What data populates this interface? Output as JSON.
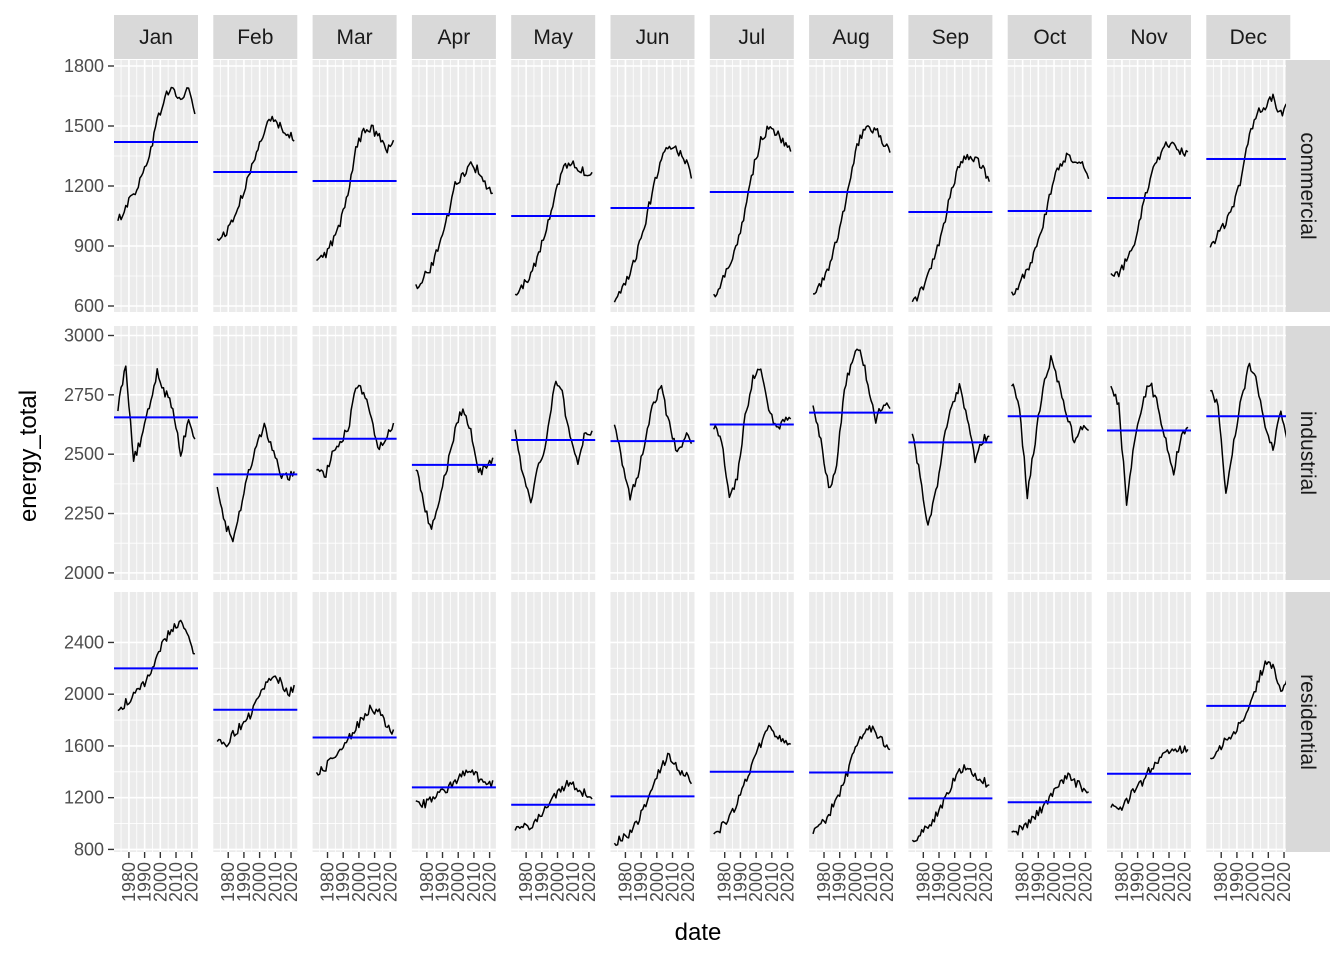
{
  "chart_data": {
    "type": "line",
    "subtype": "seasonal subseries facet grid",
    "title": "",
    "xlabel": "date",
    "ylabel": "energy_total",
    "months": [
      "Jan",
      "Feb",
      "Mar",
      "Apr",
      "May",
      "Jun",
      "Jul",
      "Aug",
      "Sep",
      "Oct",
      "Nov",
      "Dec"
    ],
    "rows": [
      {
        "label": "commercial",
        "ylim": [
          570,
          1830
        ],
        "yticks": [
          600,
          900,
          1200,
          1500,
          1800
        ]
      },
      {
        "label": "industrial",
        "ylim": [
          1970,
          3040
        ],
        "yticks": [
          2000,
          2250,
          2500,
          2750,
          3000
        ]
      },
      {
        "label": "residential",
        "ylim": [
          780,
          2790
        ],
        "yticks": [
          800,
          1200,
          1600,
          2000,
          2400
        ]
      }
    ],
    "xlim": [
      1970.5,
      2024
    ],
    "xticks": [
      1980,
      1990,
      2000,
      2010,
      2020
    ],
    "year_range": [
      1973,
      2022
    ],
    "mean_line_color": "#0000ff",
    "series_line_color": "#000000",
    "grid": true,
    "means": {
      "commercial": [
        1420,
        1270,
        1225,
        1060,
        1050,
        1090,
        1170,
        1170,
        1070,
        1075,
        1140,
        1335
      ],
      "industrial": [
        2655,
        2415,
        2565,
        2455,
        2560,
        2555,
        2625,
        2675,
        2550,
        2660,
        2600,
        2660
      ],
      "residential": [
        2200,
        1880,
        1665,
        1280,
        1145,
        1210,
        1400,
        1395,
        1195,
        1165,
        1385,
        1910
      ]
    },
    "anchor_years": [
      1973,
      1978,
      1983,
      1988,
      1993,
      1998,
      2003,
      2008,
      2013,
      2018,
      2022
    ],
    "anchors": {
      "commercial": [
        [
          1020,
          1100,
          1160,
          1240,
          1360,
          1520,
          1650,
          1690,
          1620,
          1700,
          1560
        ],
        [
          930,
          960,
          1030,
          1130,
          1240,
          1380,
          1480,
          1540,
          1500,
          1470,
          1420
        ],
        [
          820,
          850,
          920,
          1010,
          1160,
          1390,
          1470,
          1490,
          1440,
          1380,
          1420
        ],
        [
          700,
          740,
          800,
          910,
          1040,
          1200,
          1260,
          1300,
          1280,
          1200,
          1150
        ],
        [
          650,
          700,
          760,
          860,
          980,
          1150,
          1280,
          1320,
          1290,
          1270,
          1250
        ],
        [
          610,
          680,
          760,
          880,
          1030,
          1200,
          1350,
          1410,
          1380,
          1330,
          1260
        ],
        [
          650,
          720,
          810,
          920,
          1080,
          1280,
          1430,
          1490,
          1460,
          1420,
          1390
        ],
        [
          650,
          710,
          800,
          920,
          1090,
          1300,
          1450,
          1500,
          1480,
          1420,
          1380
        ],
        [
          610,
          670,
          750,
          860,
          1000,
          1180,
          1300,
          1350,
          1340,
          1280,
          1230
        ],
        [
          660,
          710,
          780,
          870,
          1000,
          1180,
          1300,
          1350,
          1310,
          1300,
          1240
        ],
        [
          750,
          760,
          830,
          920,
          1080,
          1240,
          1330,
          1400,
          1400,
          1370,
          1370
        ],
        [
          880,
          960,
          1020,
          1100,
          1250,
          1450,
          1560,
          1600,
          1640,
          1560,
          1610
        ]
      ],
      "industrial": [
        [
          2700,
          2880,
          2480,
          2560,
          2700,
          2850,
          2760,
          2700,
          2500,
          2650,
          2560
        ],
        [
          2380,
          2200,
          2150,
          2280,
          2420,
          2550,
          2620,
          2520,
          2420,
          2400,
          2420
        ],
        [
          2450,
          2400,
          2500,
          2560,
          2600,
          2780,
          2760,
          2650,
          2520,
          2580,
          2620
        ],
        [
          2450,
          2300,
          2180,
          2300,
          2450,
          2600,
          2700,
          2600,
          2420,
          2450,
          2470
        ],
        [
          2620,
          2400,
          2300,
          2450,
          2560,
          2800,
          2750,
          2560,
          2450,
          2600,
          2580
        ],
        [
          2640,
          2450,
          2320,
          2420,
          2580,
          2720,
          2780,
          2620,
          2500,
          2580,
          2560
        ],
        [
          2620,
          2560,
          2300,
          2400,
          2660,
          2820,
          2860,
          2700,
          2600,
          2650,
          2660
        ],
        [
          2720,
          2550,
          2350,
          2450,
          2780,
          2900,
          2950,
          2800,
          2650,
          2720,
          2700
        ],
        [
          2600,
          2400,
          2200,
          2340,
          2550,
          2700,
          2780,
          2650,
          2480,
          2560,
          2580
        ],
        [
          2800,
          2700,
          2320,
          2560,
          2780,
          2900,
          2800,
          2660,
          2560,
          2620,
          2600
        ],
        [
          2800,
          2700,
          2300,
          2560,
          2720,
          2800,
          2700,
          2560,
          2420,
          2600,
          2610
        ],
        [
          2780,
          2700,
          2320,
          2560,
          2740,
          2880,
          2800,
          2600,
          2520,
          2700,
          2550
        ]
      ],
      "residential": [
        [
          1880,
          1930,
          1980,
          2050,
          2150,
          2300,
          2420,
          2520,
          2550,
          2450,
          2300
        ],
        [
          1640,
          1600,
          1700,
          1750,
          1820,
          1930,
          2050,
          2150,
          2100,
          2000,
          2050
        ],
        [
          1400,
          1420,
          1500,
          1580,
          1650,
          1740,
          1830,
          1900,
          1850,
          1750,
          1700
        ],
        [
          1180,
          1150,
          1180,
          1230,
          1270,
          1330,
          1380,
          1400,
          1350,
          1310,
          1300
        ],
        [
          950,
          960,
          990,
          1040,
          1110,
          1200,
          1280,
          1310,
          1270,
          1230,
          1220
        ],
        [
          850,
          880,
          920,
          1020,
          1150,
          1320,
          1450,
          1520,
          1430,
          1380,
          1330
        ],
        [
          920,
          970,
          1050,
          1160,
          1320,
          1480,
          1620,
          1730,
          1680,
          1640,
          1630
        ],
        [
          920,
          990,
          1070,
          1190,
          1330,
          1500,
          1650,
          1760,
          1700,
          1620,
          1580
        ],
        [
          870,
          920,
          980,
          1060,
          1160,
          1290,
          1420,
          1450,
          1380,
          1330,
          1300
        ],
        [
          930,
          950,
          1000,
          1060,
          1130,
          1220,
          1300,
          1360,
          1330,
          1270,
          1240
        ],
        [
          1120,
          1100,
          1170,
          1250,
          1320,
          1420,
          1500,
          1560,
          1540,
          1570,
          1560
        ],
        [
          1500,
          1580,
          1640,
          1700,
          1780,
          1920,
          2080,
          2250,
          2200,
          2050,
          2100
        ]
      ]
    }
  }
}
